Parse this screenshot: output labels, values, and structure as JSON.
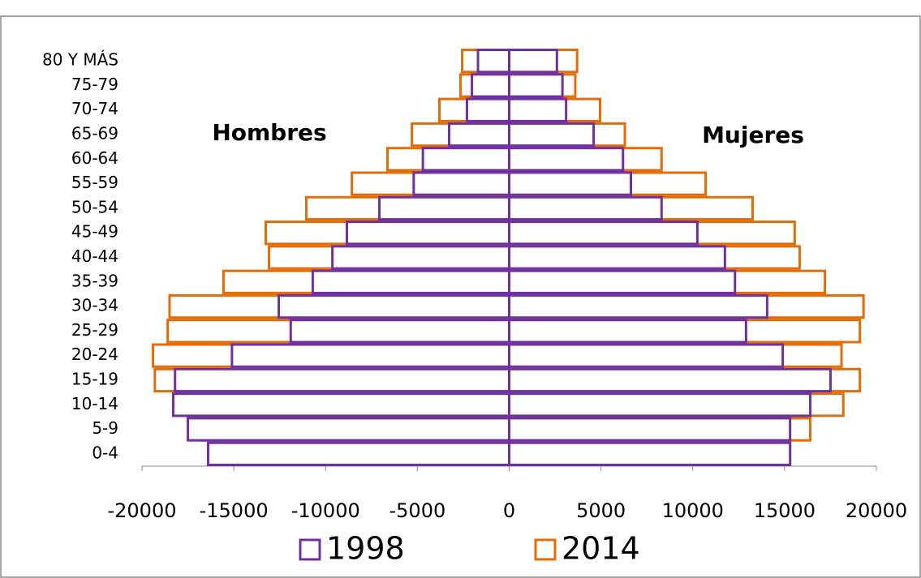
{
  "chart_data": {
    "type": "pyramid",
    "categories": [
      "0-4",
      "5-9",
      "10-14",
      "15-19",
      "20-24",
      "25-29",
      "30-34",
      "35-39",
      "40-44",
      "45-49",
      "50-54",
      "55-59",
      "60-64",
      "65-69",
      "70-74",
      "75-79",
      "80 Y MÁS"
    ],
    "annotations": [
      "Hombres",
      "Mujeres"
    ],
    "series": [
      {
        "name": "2014",
        "color": "#e36c09",
        "hombres": [
          -16000,
          -16800,
          -18000,
          -19300,
          -19400,
          -18600,
          -18500,
          -15560,
          -13080,
          -13260,
          -11050,
          -8570,
          -6630,
          -5300,
          -3800,
          -2650,
          -2560
        ],
        "mujeres": [
          15300,
          16400,
          18200,
          19100,
          18100,
          19100,
          19300,
          17200,
          15820,
          15550,
          13260,
          10700,
          8300,
          6300,
          4950,
          3600,
          3700
        ]
      },
      {
        "name": "1998",
        "color": "#7030a0",
        "hombres": [
          -16400,
          -17500,
          -18300,
          -18200,
          -15100,
          -11900,
          -12550,
          -10700,
          -9630,
          -8840,
          -7070,
          -5200,
          -4700,
          -3270,
          -2300,
          -2030,
          -1700
        ],
        "mujeres": [
          15300,
          15300,
          16400,
          17500,
          14900,
          12900,
          14050,
          12300,
          11750,
          10250,
          8300,
          6630,
          6200,
          4600,
          3100,
          2900,
          2600
        ]
      }
    ],
    "xlim": [
      -20000,
      20000
    ],
    "xticks": [
      -20000,
      -15000,
      -10000,
      -5000,
      0,
      5000,
      10000,
      15000,
      20000
    ]
  }
}
